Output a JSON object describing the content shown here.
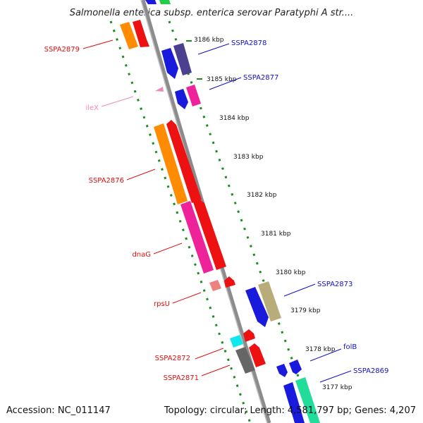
{
  "title": "Salmonella enterica subsp. enterica serovar Paratyphi A str....",
  "footer": {
    "accession": "Accession: NC_011147",
    "summary": "Topology: circular; Length: 4,581,797 bp; Genes: 4,207"
  },
  "ticks": [
    "3186 kbp",
    "3185 kbp",
    "3184 kbp",
    "3183 kbp",
    "3182 kbp",
    "3181 kbp",
    "3180 kbp",
    "3179 kbp",
    "3178 kbp",
    "3177 kbp"
  ],
  "genes": {
    "SSPA2879": "SSPA2879",
    "SSPA2878": "SSPA2878",
    "SSPA2877": "SSPA2877",
    "ileX": "ileX",
    "SSPA2876": "SSPA2876",
    "dnaG": "dnaG",
    "rpsU": "rpsU",
    "SSPA2873": "SSPA2873",
    "SSPA2872": "SSPA2872",
    "SSPA2871": "SSPA2871",
    "folB": "folB",
    "SSPA2869": "SSPA2869"
  },
  "colors": {
    "backbone": "#8c8c8c",
    "dots": "#1f8a1f",
    "forward_label": "#1010c8",
    "reverse_label": "#dd1010",
    "trna_label": "#ee88bb"
  }
}
